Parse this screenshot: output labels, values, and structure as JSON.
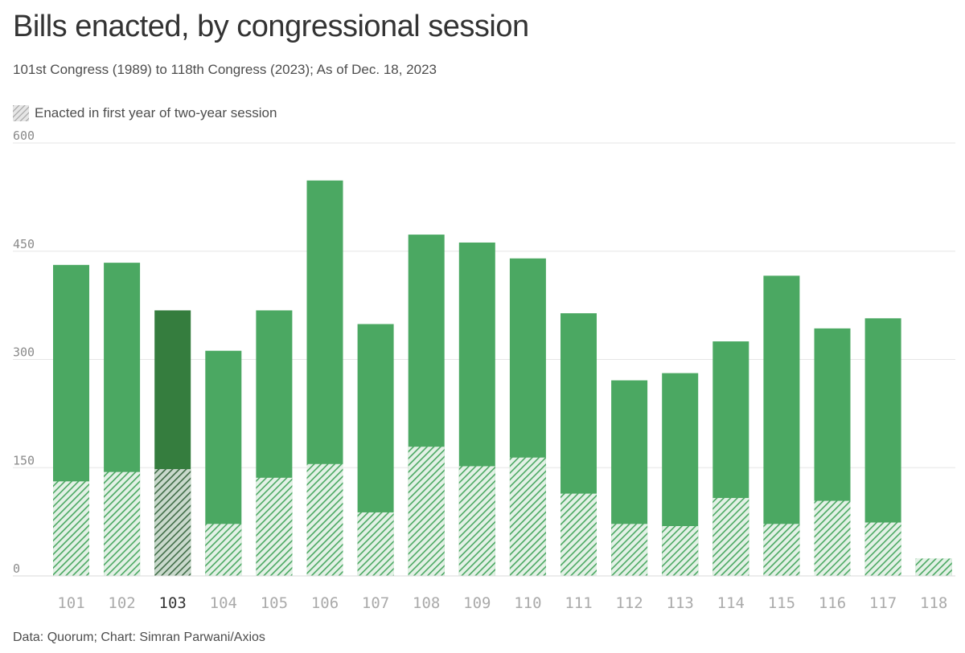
{
  "header": {
    "title": "Bills enacted, by congressional session",
    "subtitle": "101st Congress (1989) to 118th Congress (2023); As of Dec. 18, 2023"
  },
  "legend": {
    "label": "Enacted in first year of two-year session"
  },
  "footer": {
    "source": "Data: Quorum; Chart: Simran Parwani/Axios"
  },
  "colors": {
    "bar": "#4ba862",
    "bar_highlight": "#357d3e",
    "stripe_light": "#e3f1e6",
    "grid": "#e6e6e6"
  },
  "chart_data": {
    "type": "bar",
    "stacked": false,
    "categories": [
      "101",
      "102",
      "103",
      "104",
      "105",
      "106",
      "107",
      "108",
      "109",
      "110",
      "111",
      "112",
      "113",
      "114",
      "115",
      "116",
      "117",
      "118"
    ],
    "series": [
      {
        "values": [
          431,
          434,
          368,
          312,
          368,
          548,
          349,
          473,
          462,
          440,
          364,
          271,
          281,
          325,
          416,
          343,
          357,
          24
        ]
      },
      {
        "name": "Enacted in first year of two-year session",
        "pattern": "diagonal-stripes",
        "values": [
          131,
          144,
          148,
          72,
          136,
          155,
          88,
          179,
          152,
          164,
          114,
          72,
          69,
          108,
          72,
          104,
          74,
          24
        ]
      }
    ],
    "highlight_category": "103",
    "ylim": [
      0,
      600
    ],
    "yticks": [
      0,
      150,
      300,
      450,
      600
    ],
    "grid": true,
    "legend_position": "top-left",
    "xlabel": "",
    "ylabel": ""
  }
}
